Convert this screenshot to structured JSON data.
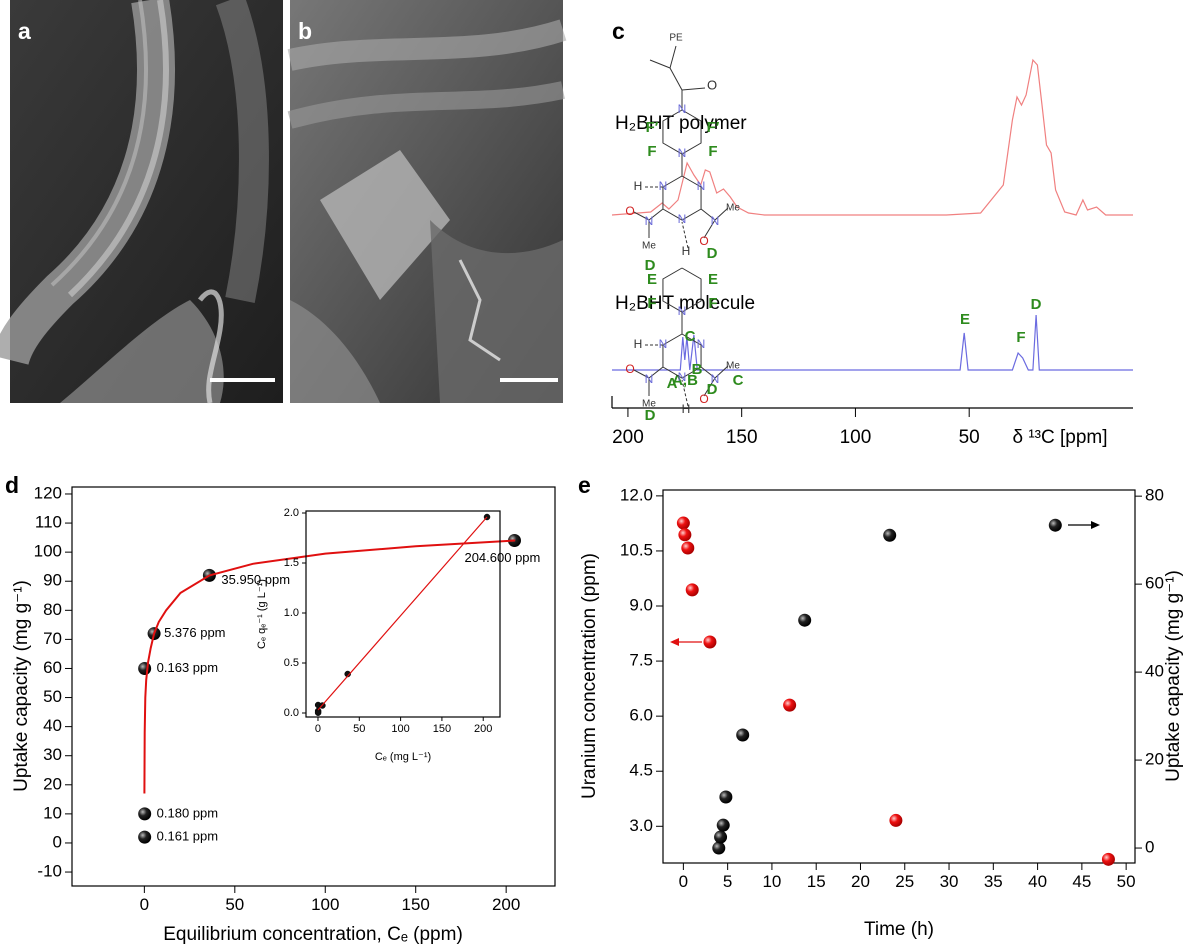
{
  "panel_labels": [
    "a",
    "b",
    "c",
    "d",
    "e"
  ],
  "chart_data": [
    {
      "type": "spectrum",
      "xlabel": "δ ¹³C [ppm]",
      "xlim": [
        207,
        -22
      ],
      "xticks": [
        200,
        150,
        100,
        50
      ],
      "series": [
        {
          "name": "H₂BHT polymer",
          "color": "#f08080",
          "x": [
            207,
            190,
            185,
            182,
            178,
            174,
            171,
            168,
            166,
            164,
            161,
            158,
            155,
            152,
            147,
            140,
            100,
            60,
            45,
            35,
            31,
            29,
            27,
            25,
            22,
            20,
            18,
            16,
            14,
            12,
            8,
            3,
            0,
            -2,
            -6,
            -10,
            -22
          ],
          "values": [
            0,
            3,
            12,
            6,
            15,
            52,
            40,
            30,
            45,
            43,
            22,
            26,
            18,
            8,
            2,
            0,
            0,
            0,
            2,
            30,
            95,
            118,
            110,
            120,
            155,
            150,
            110,
            70,
            62,
            25,
            3,
            0,
            15,
            5,
            8,
            0,
            0
          ]
        },
        {
          "name": "H₂BHT molecule",
          "color": "#6b6be0",
          "x": [
            207,
            180,
            177,
            175.9,
            175,
            174.1,
            172.8,
            171,
            169.5,
            120,
            54,
            52.2,
            50.5,
            31,
            28.5,
            26.5,
            24,
            22,
            20.6,
            19.2,
            -22
          ],
          "values": [
            0,
            0,
            0,
            33,
            10,
            33,
            0,
            35,
            0,
            0,
            0,
            37,
            0,
            0,
            17,
            12,
            0,
            0,
            55,
            0,
            0
          ]
        }
      ],
      "peak_labels": [
        "A,B",
        "C",
        "E",
        "F",
        "D"
      ],
      "polymer_structure_labels": [
        "PE",
        "O",
        "N",
        "N",
        "F′",
        "F′",
        "F",
        "F",
        "N",
        "N",
        "N",
        "H",
        "N",
        "O",
        "Me",
        "D",
        "N",
        "Me",
        "O",
        "H",
        "D"
      ],
      "molecule_structure_labels": [
        "E",
        "E",
        "F",
        "F",
        "N",
        "C",
        "N",
        "N",
        "N",
        "A",
        "B",
        "H",
        "N",
        "O",
        "Me",
        "D",
        "N",
        "Me",
        "O",
        "H",
        "D"
      ]
    },
    {
      "type": "scatter",
      "xlabel": "Equilibrium concentration, Cₑ (ppm)",
      "ylabel": "Uptake capacity (mg g⁻¹)",
      "xlim": [
        -40,
        227
      ],
      "ylim": [
        -14.8,
        122.4
      ],
      "xticks": [
        0,
        50,
        100,
        150,
        200
      ],
      "yticks": [
        -10,
        0,
        10,
        20,
        30,
        40,
        50,
        60,
        70,
        80,
        90,
        100,
        110,
        120
      ],
      "series": [
        {
          "color": "#111111",
          "x": [
            0.161,
            0.18,
            0.163,
            5.376,
            35.95,
            204.6
          ],
          "values": [
            2,
            10,
            60,
            72,
            92,
            104
          ],
          "x_value_labels": [
            "0.161 ppm",
            "0.180 ppm",
            "0.163 ppm",
            "5.376 ppm",
            "35.950 ppm",
            "204.600 ppm"
          ]
        },
        {
          "type": "line",
          "color": "#e01010",
          "x": [
            0.02,
            0.2,
            0.5,
            1,
            2,
            3.5,
            5.4,
            8,
            12,
            20,
            36,
            60,
            100,
            150,
            205
          ],
          "values": [
            17,
            38,
            50,
            56,
            62,
            67,
            72,
            76,
            80,
            86,
            92,
            96,
            99.5,
            102,
            104
          ]
        }
      ]
    },
    {
      "type": "scatter",
      "xlabel": "Cₑ (mg L⁻¹)",
      "ylabel": "Cₑ qₑ⁻¹ (g L⁻¹)",
      "xlim": [
        -14.5,
        220.3
      ],
      "ylim": [
        -0.04,
        2.02
      ],
      "xticks": [
        0,
        50,
        100,
        150,
        200
      ],
      "yticks": [
        {
          "value": 0,
          "label": "0.0"
        },
        0.5,
        {
          "value": 1,
          "label": "1.0"
        },
        1.5,
        {
          "value": 2,
          "label": "2.0"
        }
      ],
      "series": [
        {
          "color": "#111111",
          "x": [
            0.161,
            0.18,
            0.163,
            5.376,
            35.95,
            204.6
          ],
          "values": [
            0.08,
            0.02,
            0.003,
            0.075,
            0.39,
            1.96
          ]
        },
        {
          "type": "line",
          "color": "#e01010",
          "x": [
            0,
            204.6
          ],
          "values": [
            0.03,
            1.96
          ]
        }
      ]
    },
    {
      "type": "scatter",
      "xlabel": "Time (h)",
      "ylabel": "Uranium concentration (ppm)",
      "y2label": "Uptake capacity (mg g⁻¹)",
      "xlim": [
        -2.3,
        51
      ],
      "ylim": [
        2.0,
        12.16
      ],
      "y2lim": [
        -3.4,
        81.4
      ],
      "xticks": [
        0,
        5,
        10,
        15,
        20,
        25,
        30,
        35,
        40,
        45,
        50
      ],
      "yticks": [
        {
          "value": 3,
          "label": "3.0"
        },
        4.5,
        {
          "value": 6,
          "label": "6.0"
        },
        7.5,
        {
          "value": 9,
          "label": "9.0"
        },
        10.5,
        {
          "value": 12,
          "label": "12.0"
        }
      ],
      "y2ticks": [
        0,
        20,
        40,
        60,
        80
      ],
      "series": [
        {
          "color": "#e01010",
          "x": [
            0,
            0.17,
            0.5,
            1,
            3,
            12,
            24,
            48
          ],
          "values": [
            11.26,
            10.94,
            10.58,
            9.44,
            8.02,
            6.3,
            3.16,
            2.1
          ]
        },
        {
          "color": "#111111",
          "axis": "y2",
          "x": [
            4.0,
            4.2,
            4.5,
            4.8,
            6.7,
            13.7,
            23.3,
            42.0
          ],
          "values": [
            0,
            2.5,
            5.2,
            11.6,
            25.7,
            51.8,
            71.1,
            73.4
          ]
        }
      ]
    }
  ]
}
